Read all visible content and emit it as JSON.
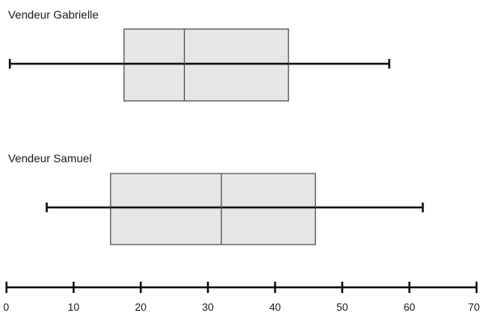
{
  "chart_data": {
    "type": "boxplot",
    "series": [
      {
        "name": "Vendeur Gabrielle",
        "min": 0.5,
        "q1": 17.5,
        "median": 26.5,
        "q3": 42,
        "max": 57
      },
      {
        "name": "Vendeur Samuel",
        "min": 6,
        "q1": 15.5,
        "median": 32,
        "q3": 46,
        "max": 62
      }
    ],
    "xlim": [
      0,
      70
    ],
    "xticks": [
      0,
      10,
      20,
      30,
      40,
      50,
      60,
      70
    ],
    "xlabel": "",
    "title": "",
    "colors": {
      "box_fill": "#e6e6e6",
      "box_stroke": "#555555",
      "whisker": "#111111",
      "axis": "#111111"
    }
  }
}
